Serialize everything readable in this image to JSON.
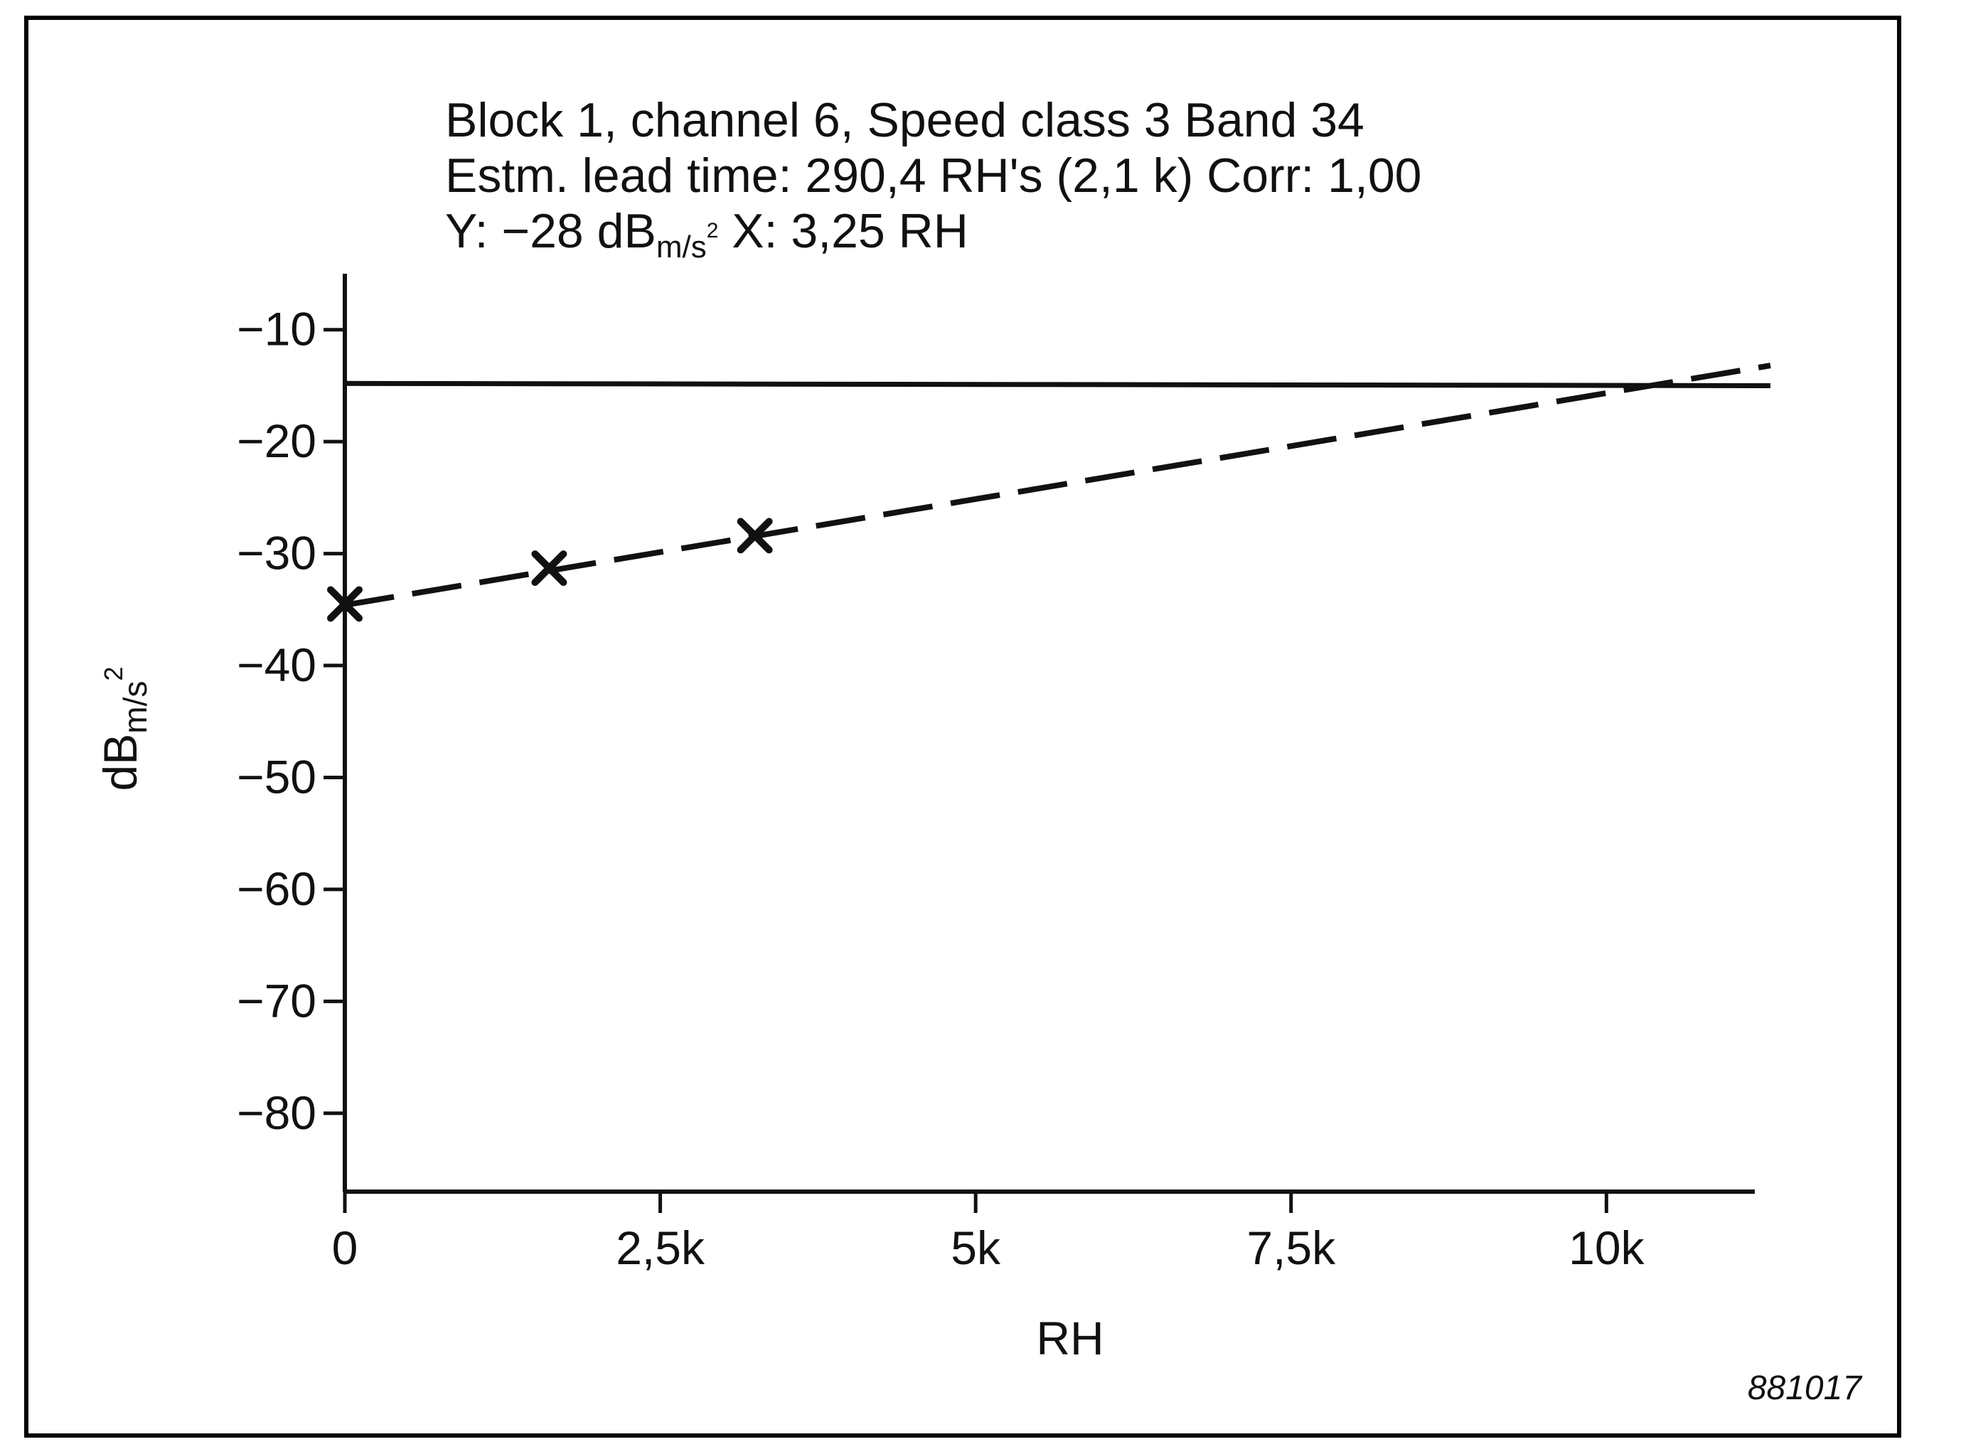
{
  "chart_data": {
    "type": "line",
    "title_lines": [
      "Block 1, channel 6, Speed class 3 Band 34",
      "Estm. lead time: 290,4 RH's (2,1 k) Corr: 1,00"
    ],
    "cursor_readout": {
      "y_prefix": "Y: −28 dB",
      "y_unit_sub": "m/s",
      "y_unit_sup": "2",
      "x_text": " X: 3,25 RH"
    },
    "xlabel": "RH",
    "ylabel": {
      "base": "dB",
      "sub": "m/s",
      "sup": "2"
    },
    "xlim": [
      0,
      11300
    ],
    "ylim": [
      -87,
      -5
    ],
    "x_ticks": [
      {
        "value": 0,
        "label": "0"
      },
      {
        "value": 2500,
        "label": "2,5k"
      },
      {
        "value": 5000,
        "label": "5k"
      },
      {
        "value": 7500,
        "label": "7,5k"
      },
      {
        "value": 10000,
        "label": "10k"
      }
    ],
    "y_ticks": [
      {
        "value": -10,
        "label": "−10"
      },
      {
        "value": -20,
        "label": "−20"
      },
      {
        "value": -30,
        "label": "−30"
      },
      {
        "value": -40,
        "label": "−40"
      },
      {
        "value": -50,
        "label": "−50"
      },
      {
        "value": -60,
        "label": "−60"
      },
      {
        "value": -70,
        "label": "−70"
      },
      {
        "value": -80,
        "label": "−80"
      }
    ],
    "series": [
      {
        "style": "solid",
        "x": [
          0,
          11300
        ],
        "y": [
          -14.8,
          -15.0
        ]
      },
      {
        "style": "dashed",
        "x": [
          0,
          11300
        ],
        "y": [
          -34.6,
          -13.2
        ]
      },
      {
        "style": "markers",
        "marker": "x",
        "x": [
          0,
          1620,
          3250
        ],
        "y": [
          -34.5,
          -31.3,
          -28.4
        ]
      }
    ],
    "grid": false,
    "colors": {
      "ink": "#111111",
      "background": "#ffffff"
    }
  },
  "figure_id": "881017"
}
